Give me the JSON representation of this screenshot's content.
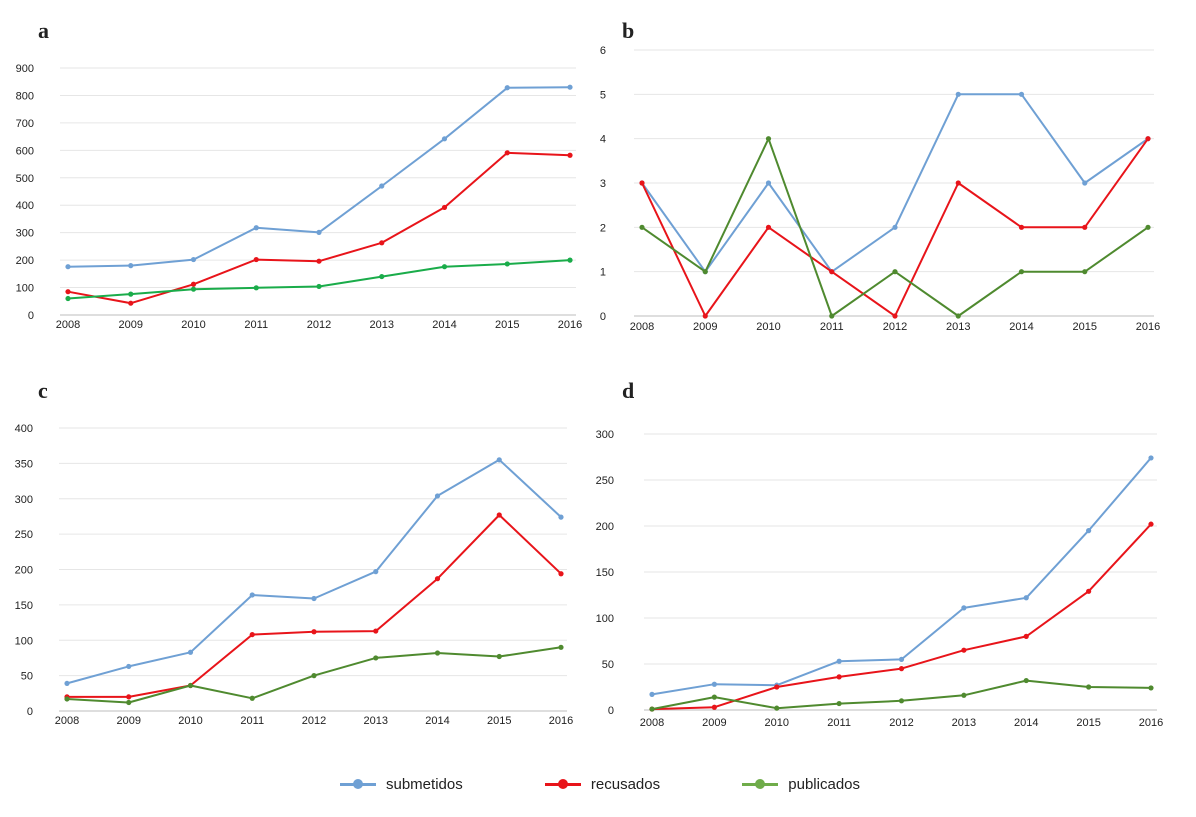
{
  "colors": {
    "submetidos": "#6fa0d4",
    "recusados": "#e8141a",
    "publicados_a": "#1aac4a",
    "publicados": "#4f8a2f"
  },
  "legend": [
    {
      "label": "submetidos",
      "color": "#6fa0d4"
    },
    {
      "label": "recusados",
      "color": "#e8141a"
    },
    {
      "label": "publicados",
      "color": "#4f8a2f"
    }
  ],
  "chart_data": [
    {
      "panel": "a",
      "type": "line",
      "x": [
        "2008",
        "2009",
        "2010",
        "2011",
        "2012",
        "2013",
        "2014",
        "2015",
        "2016"
      ],
      "ylim": [
        0,
        900
      ],
      "yticks": [
        "0",
        "100",
        "200",
        "300",
        "400",
        "500",
        "600",
        "700",
        "800",
        "900"
      ],
      "grid": true,
      "series": [
        {
          "name": "submetidos",
          "color": "#6fa0d4",
          "values": [
            176,
            180,
            202,
            318,
            301,
            470,
            642,
            828,
            830
          ]
        },
        {
          "name": "recusados",
          "color": "#e8141a",
          "values": [
            85,
            43,
            112,
            202,
            196,
            263,
            392,
            591,
            582
          ]
        },
        {
          "name": "publicados",
          "color": "#1aac4a",
          "values": [
            60,
            76,
            94,
            99,
            104,
            140,
            176,
            186,
            200
          ]
        }
      ]
    },
    {
      "panel": "b",
      "type": "line",
      "x": [
        "2008",
        "2009",
        "2010",
        "2011",
        "2012",
        "2013",
        "2014",
        "2015",
        "2016"
      ],
      "ylim": [
        0,
        6
      ],
      "yticks": [
        "0",
        "1",
        "2",
        "3",
        "4",
        "5",
        "6"
      ],
      "grid": true,
      "series": [
        {
          "name": "submetidos",
          "color": "#6fa0d4",
          "values": [
            3,
            1,
            3,
            1,
            2,
            5,
            5,
            3,
            4
          ]
        },
        {
          "name": "recusados",
          "color": "#e8141a",
          "values": [
            3,
            0,
            2,
            1,
            0,
            3,
            2,
            2,
            4
          ]
        },
        {
          "name": "publicados",
          "color": "#4f8a2f",
          "values": [
            2,
            1,
            4,
            0,
            1,
            0,
            1,
            1,
            2
          ]
        }
      ]
    },
    {
      "panel": "c",
      "type": "line",
      "x": [
        "2008",
        "2009",
        "2010",
        "2011",
        "2012",
        "2013",
        "2014",
        "2015",
        "2016"
      ],
      "ylim": [
        0,
        400
      ],
      "yticks": [
        "0",
        "50",
        "100",
        "150",
        "200",
        "250",
        "300",
        "350",
        "400"
      ],
      "grid": true,
      "series": [
        {
          "name": "submetidos",
          "color": "#6fa0d4",
          "values": [
            39,
            63,
            83,
            164,
            159,
            197,
            304,
            355,
            274
          ]
        },
        {
          "name": "recusados",
          "color": "#e8141a",
          "values": [
            20,
            20,
            36,
            108,
            112,
            113,
            187,
            277,
            194
          ]
        },
        {
          "name": "publicados",
          "color": "#4f8a2f",
          "values": [
            17,
            12,
            36,
            18,
            50,
            75,
            82,
            77,
            90
          ]
        }
      ]
    },
    {
      "panel": "d",
      "type": "line",
      "x": [
        "2008",
        "2009",
        "2010",
        "2011",
        "2012",
        "2013",
        "2014",
        "2015",
        "2016"
      ],
      "ylim": [
        0,
        300
      ],
      "yticks": [
        "0",
        "50",
        "100",
        "150",
        "200",
        "250",
        "300"
      ],
      "grid": true,
      "series": [
        {
          "name": "submetidos",
          "color": "#6fa0d4",
          "values": [
            17,
            28,
            27,
            53,
            55,
            111,
            122,
            195,
            274
          ]
        },
        {
          "name": "recusados",
          "color": "#e8141a",
          "values": [
            1,
            3,
            25,
            36,
            45,
            65,
            80,
            129,
            202
          ]
        },
        {
          "name": "publicados",
          "color": "#4f8a2f",
          "values": [
            1,
            14,
            2,
            7,
            10,
            16,
            32,
            25,
            24
          ]
        }
      ]
    }
  ]
}
